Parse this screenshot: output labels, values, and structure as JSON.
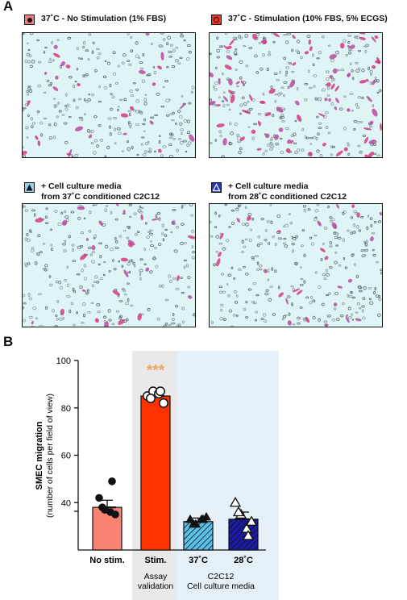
{
  "panel_a_label": "A",
  "panel_b_label": "B",
  "micrographs": [
    {
      "legend": "37˚C - No Stimulation (1% FBS)",
      "swatch_color": "#f47b7b",
      "swatch_marker": "circle-filled",
      "cell_density": "low"
    },
    {
      "legend": "37˚C - Stimulation (10% FBS, 5% ECGS)",
      "swatch_color": "#ee3322",
      "swatch_marker": "circle-open",
      "cell_density": "high"
    },
    {
      "legend": "+ Cell culture media\nfrom 37˚C conditioned C2C12",
      "swatch_color": "#8fd3ef",
      "swatch_marker": "triangle-filled",
      "cell_density": "low"
    },
    {
      "legend": "+ Cell culture media\nfrom 28˚C conditioned C2C12",
      "swatch_color": "#2233cc",
      "swatch_marker": "triangle-open",
      "cell_density": "low"
    }
  ],
  "chart_data": {
    "type": "bar",
    "ylabel": "SMEC migration",
    "ylabel_sub": "(number of cells per field of view)",
    "ylim": [
      20,
      100
    ],
    "yticks": [
      40,
      60,
      80,
      100
    ],
    "categories": [
      "No stim.",
      "Stim.",
      "37˚C",
      "28˚C"
    ],
    "values": [
      38,
      85,
      32,
      33
    ],
    "errors": [
      3,
      2,
      1.5,
      3
    ],
    "bar_colors": [
      "#f98273",
      "#ff3300",
      "#5bc0ea",
      "#1a1aa6"
    ],
    "bar_hatched": [
      false,
      false,
      true,
      true
    ],
    "points": [
      [
        42,
        37,
        36,
        35,
        38,
        49
      ],
      [
        85,
        87,
        86,
        82,
        84,
        87
      ],
      [
        33,
        31,
        33,
        34,
        31,
        33
      ],
      [
        40,
        35,
        29,
        32,
        36,
        26
      ]
    ],
    "point_markers": [
      "circle-filled",
      "circle-open",
      "triangle-filled",
      "triangle-open"
    ],
    "significance": {
      "category": "Stim.",
      "label": "***",
      "color": "#f0a560"
    },
    "groups": [
      {
        "label": "Assay\nvalidation",
        "categories": [
          "Stim."
        ],
        "shade": "#e9e9e9"
      },
      {
        "label": "C2C12\nCell culture media",
        "categories": [
          "37˚C",
          "28˚C"
        ],
        "shade": "#e5f0f8"
      }
    ]
  }
}
